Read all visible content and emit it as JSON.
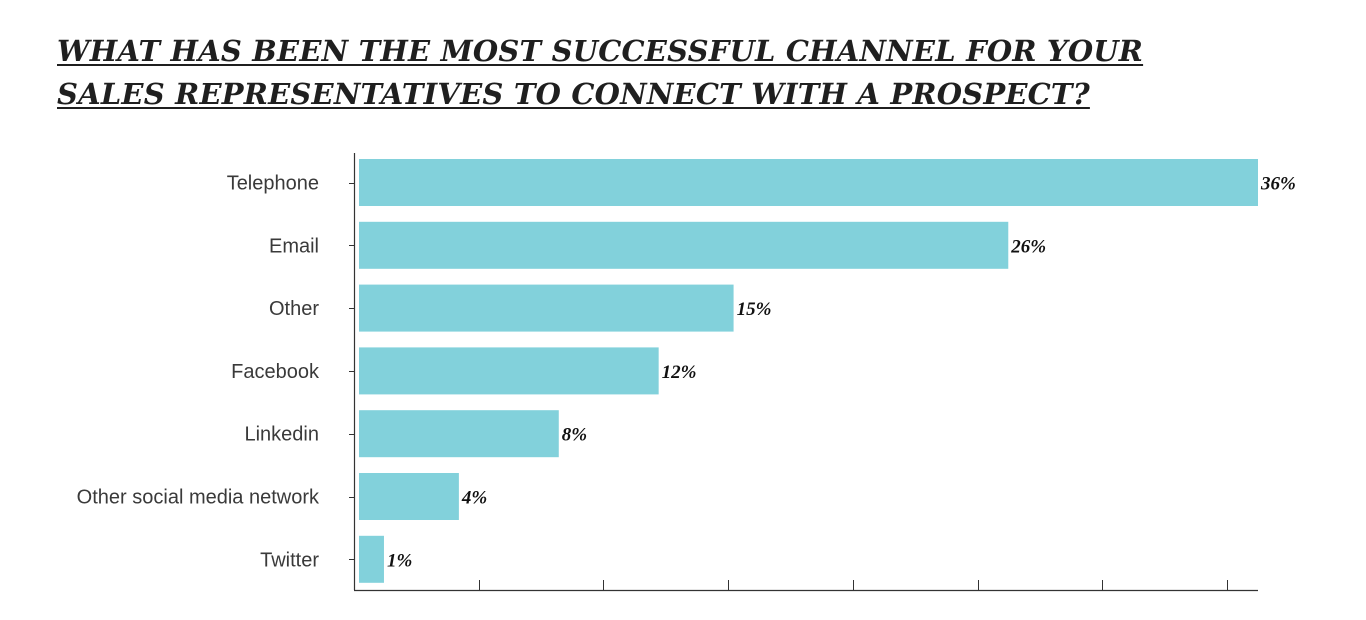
{
  "title": {
    "line1": "WHAT HAS BEEN THE MOST SUCCESSFUL CHANNEL FOR YOUR",
    "line2": "SALES REPRESENTATIVES TO CONNECT WITH A PROSPECT?"
  },
  "colors": {
    "bar": "#82d1db",
    "axis": "#333333",
    "title": "#1f1f1f"
  },
  "chart_data": {
    "type": "bar",
    "orientation": "horizontal",
    "title": "WHAT HAS BEEN THE MOST SUCCESSFUL CHANNEL FOR YOUR SALES REPRESENTATIVES TO CONNECT WITH A PROSPECT?",
    "categories": [
      "Telephone",
      "Email",
      "Other",
      "Facebook",
      "Linkedin",
      "Other social media network",
      "Twitter"
    ],
    "values": [
      36,
      26,
      15,
      12,
      8,
      4,
      1
    ],
    "value_labels": [
      "36%",
      "26%",
      "15%",
      "12%",
      "8%",
      "4%",
      "1%"
    ],
    "unit": "%",
    "xlim": [
      0,
      36
    ],
    "x_ticks": [
      5,
      10,
      15,
      20,
      25,
      30,
      35
    ],
    "grid": false,
    "legend": "none"
  }
}
